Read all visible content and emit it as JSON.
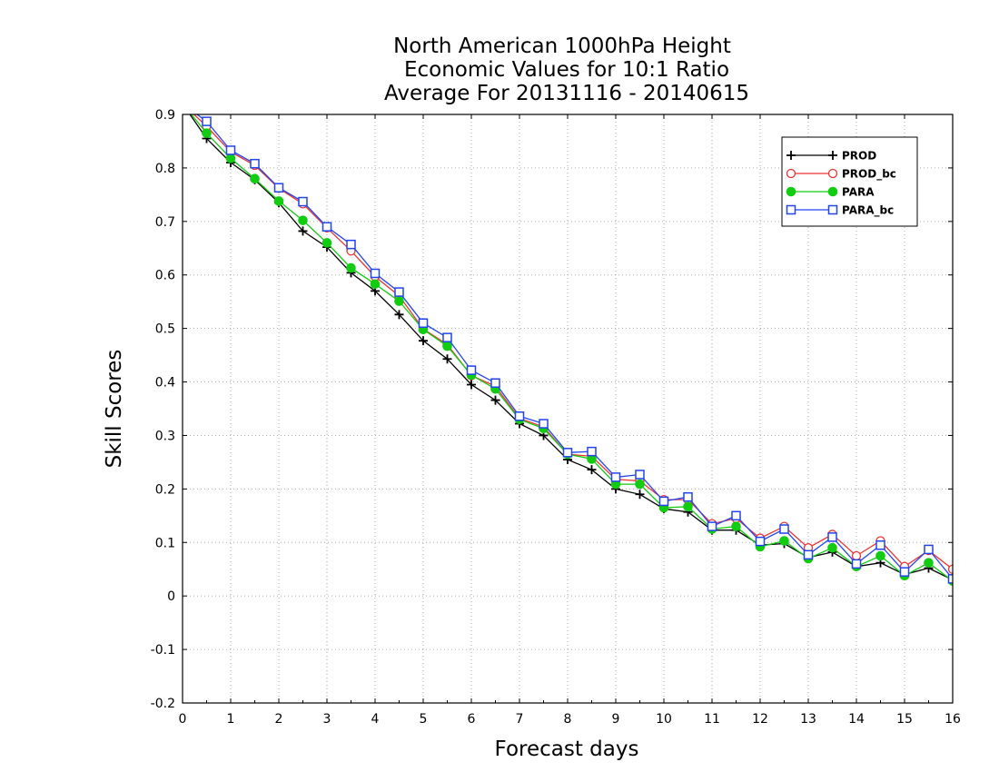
{
  "chart_data": {
    "type": "line",
    "title_lines": [
      "North American 1000hPa Height",
      "Economic Values for 10:1 Ratio",
      "Average For 20131116 - 20140615"
    ],
    "xlabel": "Forecast days",
    "ylabel": "Skill Scores",
    "xlim": [
      0,
      16
    ],
    "ylim": [
      -0.2,
      0.9
    ],
    "xticks": [
      0,
      1,
      2,
      3,
      4,
      5,
      6,
      7,
      8,
      9,
      10,
      11,
      12,
      13,
      14,
      15,
      16
    ],
    "yticks": [
      -0.2,
      -0.1,
      0,
      0.1,
      0.2,
      0.3,
      0.4,
      0.5,
      0.6,
      0.7,
      0.8,
      0.9
    ],
    "ytick_labels": [
      "-0.2",
      "-0.1",
      "0",
      "0.1",
      "0.2",
      "0.3",
      "0.4",
      "0.5",
      "0.6",
      "0.7",
      "0.8",
      "0.9"
    ],
    "grid": true,
    "legend_position": "top-right",
    "x": [
      0,
      0.5,
      1,
      1.5,
      2,
      2.5,
      3,
      3.5,
      4,
      4.5,
      5,
      5.5,
      6,
      6.5,
      7,
      7.5,
      8,
      8.5,
      9,
      9.5,
      10,
      10.5,
      11,
      11.5,
      12,
      12.5,
      13,
      13.5,
      14,
      14.5,
      15,
      15.5,
      16
    ],
    "series": [
      {
        "name": "PROD",
        "color": "#000000",
        "marker": "plus",
        "values": [
          0.92,
          0.855,
          0.81,
          0.778,
          0.735,
          0.682,
          0.652,
          0.604,
          0.57,
          0.526,
          0.477,
          0.443,
          0.395,
          0.366,
          0.322,
          0.3,
          0.255,
          0.236,
          0.2,
          0.19,
          0.163,
          0.157,
          0.123,
          0.123,
          0.095,
          0.098,
          0.072,
          0.082,
          0.055,
          0.062,
          0.04,
          0.052,
          0.03
        ]
      },
      {
        "name": "PROD_bc",
        "color": "#ee3333",
        "marker": "circle-open",
        "values": [
          0.92,
          0.878,
          0.83,
          0.805,
          0.762,
          0.733,
          0.688,
          0.645,
          0.597,
          0.561,
          0.499,
          0.47,
          0.412,
          0.392,
          0.332,
          0.316,
          0.265,
          0.261,
          0.218,
          0.215,
          0.18,
          0.18,
          0.135,
          0.145,
          0.108,
          0.13,
          0.09,
          0.115,
          0.075,
          0.103,
          0.055,
          0.085,
          0.05
        ]
      },
      {
        "name": "PARA",
        "color": "#11cc11",
        "marker": "circle-filled",
        "values": [
          0.92,
          0.865,
          0.818,
          0.78,
          0.738,
          0.702,
          0.66,
          0.613,
          0.583,
          0.551,
          0.498,
          0.467,
          0.413,
          0.387,
          0.33,
          0.313,
          0.265,
          0.256,
          0.209,
          0.209,
          0.165,
          0.167,
          0.125,
          0.13,
          0.092,
          0.103,
          0.07,
          0.09,
          0.055,
          0.075,
          0.038,
          0.062,
          0.028
        ]
      },
      {
        "name": "PARA_bc",
        "color": "#2244ee",
        "marker": "square-open",
        "values": [
          0.92,
          0.887,
          0.833,
          0.808,
          0.763,
          0.737,
          0.69,
          0.657,
          0.603,
          0.568,
          0.51,
          0.483,
          0.422,
          0.398,
          0.336,
          0.322,
          0.268,
          0.27,
          0.222,
          0.227,
          0.177,
          0.185,
          0.13,
          0.15,
          0.102,
          0.125,
          0.077,
          0.11,
          0.06,
          0.095,
          0.045,
          0.087,
          0.032
        ]
      }
    ]
  }
}
